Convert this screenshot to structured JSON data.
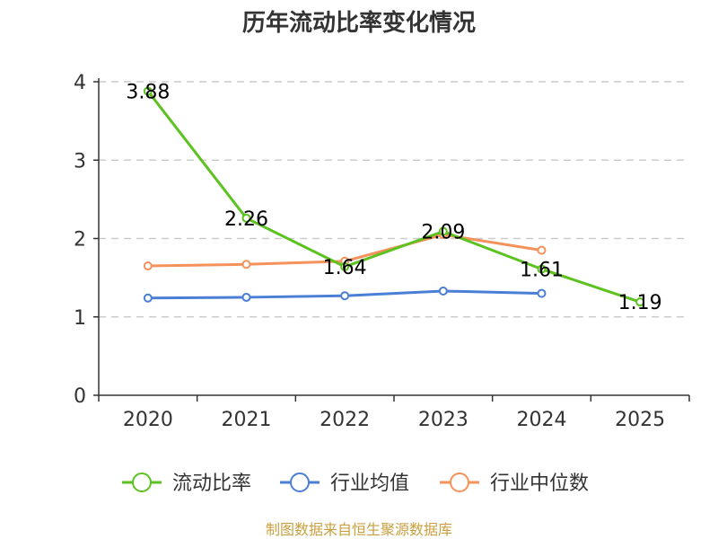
{
  "chart_data": {
    "type": "line",
    "title": "历年流动比率变化情况",
    "categories": [
      "2020",
      "2021",
      "2022",
      "2023",
      "2024",
      "2025"
    ],
    "yticks": [
      "0",
      "1",
      "2",
      "3",
      "4"
    ],
    "ylim": [
      0,
      4
    ],
    "xlabel": "",
    "ylabel": "",
    "grid": "horizontal-dashed",
    "legend_position": "bottom",
    "series": [
      {
        "name": "流动比率",
        "color": "#5bc21f",
        "values": [
          3.88,
          2.26,
          1.64,
          2.09,
          1.61,
          1.19
        ],
        "labels": [
          "3.88",
          "2.26",
          "1.64",
          "2.09",
          "1.61",
          "1.19"
        ]
      },
      {
        "name": "行业均值",
        "color": "#4b7fd6",
        "values": [
          1.24,
          1.25,
          1.27,
          1.33,
          1.3,
          null
        ]
      },
      {
        "name": "行业中位数",
        "color": "#f5915a",
        "values": [
          1.65,
          1.67,
          1.71,
          2.05,
          1.85,
          null
        ]
      }
    ]
  },
  "source_text": "制图数据来自恒生聚源数据库"
}
